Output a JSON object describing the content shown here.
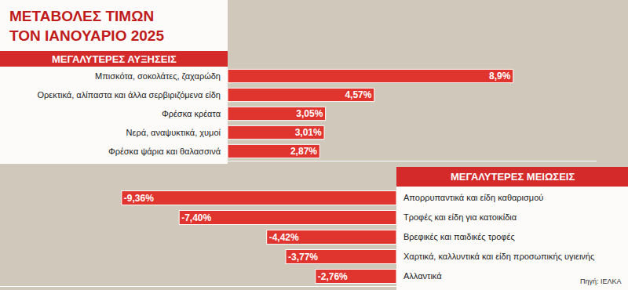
{
  "title": "ΜΕΤΑΒΟΛΕΣ ΤΙΜΩΝ\nΤΟΝ ΙΑΝΟΥΑΡΙΟ 2025",
  "source": "Πηγή: ΙΕΛΚΑ",
  "chart_data": [
    {
      "type": "bar",
      "title": "ΜΕΓΑΛΥΤΕΡΕΣ ΑΥΞΗΣΕΙΣ",
      "orientation": "horizontal",
      "categories": [
        "Μπισκότα, σοκολάτες, ζαχαρώδη",
        "Ορεκτικά, αλίπαστα και άλλα σερβιριζόμενα είδη",
        "Φρέσκα κρέατα",
        "Νερά, αναψυκτικά, χυμοί",
        "Φρέσκα ψάρια και θαλασσινά"
      ],
      "values": [
        8.9,
        4.57,
        3.05,
        3.01,
        2.87
      ],
      "value_labels": [
        "8,9%",
        "4,57%",
        "3,05%",
        "3,01%",
        "2,87%"
      ],
      "color": "#e0342e",
      "xlim": [
        0,
        11.5
      ],
      "data_labels": true,
      "tick_labels": "y"
    },
    {
      "type": "bar",
      "title": "ΜΕΓΑΛΥΤΕΡΕΣ ΜΕΙΩΣΕΙΣ",
      "orientation": "horizontal",
      "categories": [
        "Απορρυπαντικά και είδη καθαρισμού",
        "Τροφές και είδη για κατοικίδια",
        "Βρεφικές και παιδικές τροφές",
        "Χαρτικά, καλλυντικά και είδη προσωπικής υγιεινής",
        "Αλλαντικά"
      ],
      "values": [
        -9.36,
        -7.4,
        -4.42,
        -3.77,
        -2.76
      ],
      "value_labels": [
        "-9,36%",
        "-7,40%",
        "-4,42%",
        "-3,77%",
        "-2,76%"
      ],
      "color": "#e0342e",
      "xlim": [
        -13.5,
        0
      ],
      "data_labels": true,
      "tick_labels": "y"
    }
  ]
}
